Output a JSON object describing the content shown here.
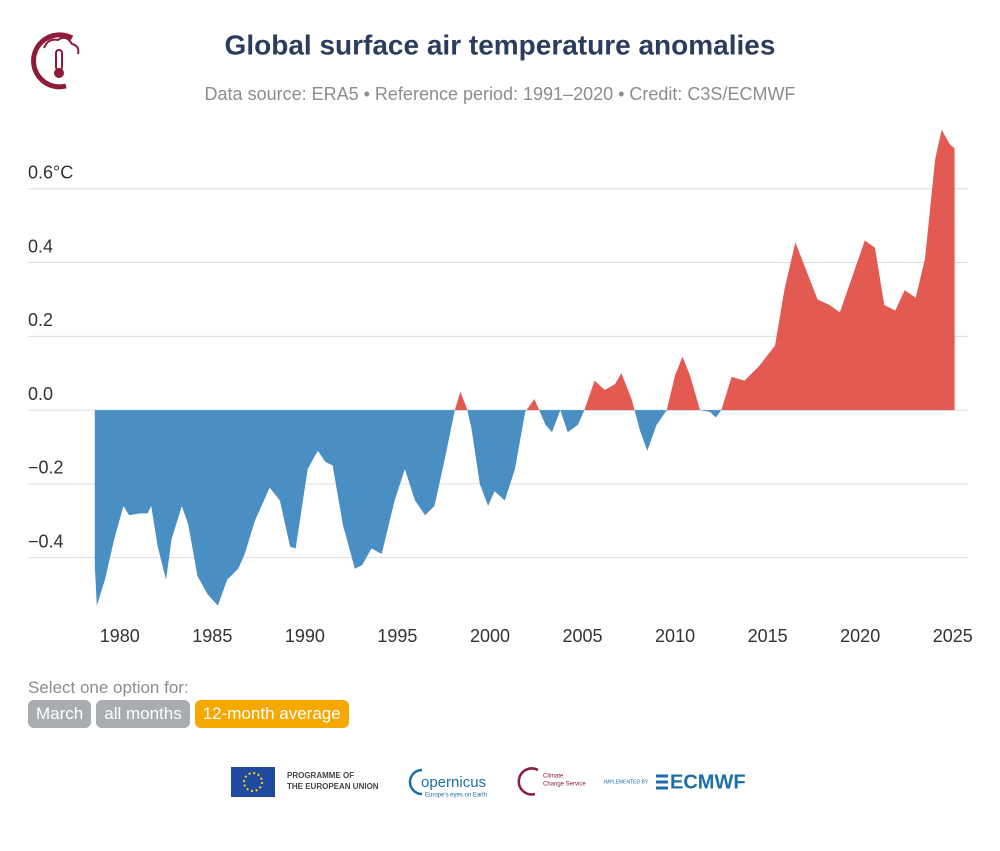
{
  "chart_data": {
    "type": "area",
    "title": "Global surface air temperature anomalies",
    "subtitle": "Data source: ERA5 • Reference period: 1991–2020 • Credit: C3S/ECMWF",
    "x": [
      1978.65,
      1978.76,
      1979.2,
      1979.7,
      1980.2,
      1980.5,
      1981.1,
      1981.5,
      1981.7,
      1982.05,
      1982.5,
      1982.8,
      1983.35,
      1983.7,
      1984.2,
      1984.75,
      1985.3,
      1985.8,
      1986.4,
      1986.75,
      1987.3,
      1988.1,
      1988.65,
      1989.2,
      1989.5,
      1989.7,
      1990.15,
      1990.7,
      1991.1,
      1991.5,
      1992.05,
      1992.7,
      1993.1,
      1993.6,
      1994.15,
      1994.85,
      1995.4,
      1995.95,
      1996.5,
      1997.0,
      1997.55,
      1998.1,
      1998.4,
      1998.75,
      1999.0,
      1999.45,
      1999.9,
      2000.25,
      2000.8,
      2001.35,
      2001.9,
      2002.4,
      2003.0,
      2003.35,
      2003.8,
      2004.2,
      2004.75,
      2005.1,
      2005.65,
      2006.2,
      2006.75,
      2007.1,
      2007.65,
      2008.1,
      2008.5,
      2009.0,
      2009.55,
      2010.0,
      2010.4,
      2010.8,
      2011.35,
      2011.9,
      2012.2,
      2012.5,
      2013.05,
      2013.75,
      2014.55,
      2015.4,
      2015.9,
      2016.5,
      2017.0,
      2017.7,
      2018.35,
      2018.9,
      2019.7,
      2020.25,
      2020.8,
      2021.3,
      2021.9,
      2022.4,
      2023.0,
      2023.5,
      2024.05,
      2024.4,
      2024.85,
      2025.1
    ],
    "values": [
      -0.42,
      -0.53,
      -0.46,
      -0.35,
      -0.26,
      -0.285,
      -0.28,
      -0.28,
      -0.26,
      -0.37,
      -0.46,
      -0.35,
      -0.26,
      -0.31,
      -0.45,
      -0.5,
      -0.53,
      -0.46,
      -0.43,
      -0.39,
      -0.3,
      -0.21,
      -0.245,
      -0.37,
      -0.375,
      -0.31,
      -0.16,
      -0.11,
      -0.14,
      -0.15,
      -0.31,
      -0.43,
      -0.42,
      -0.375,
      -0.39,
      -0.245,
      -0.16,
      -0.245,
      -0.285,
      -0.26,
      -0.135,
      0,
      0.05,
      0.005,
      -0.05,
      -0.2,
      -0.26,
      -0.22,
      -0.245,
      -0.16,
      -0.005,
      0.03,
      -0.04,
      -0.06,
      0,
      -0.06,
      -0.04,
      0,
      0.08,
      0.055,
      0.07,
      0.1,
      0.03,
      -0.055,
      -0.11,
      -0.04,
      0,
      0.095,
      0.145,
      0.095,
      0,
      -0.005,
      -0.02,
      0,
      0.09,
      0.08,
      0.12,
      0.175,
      0.325,
      0.455,
      0.39,
      0.3,
      0.285,
      0.265,
      0.38,
      0.46,
      0.44,
      0.285,
      0.27,
      0.325,
      0.305,
      0.41,
      0.68,
      0.76,
      0.72,
      0.71
    ],
    "positive_color": "#e35a53",
    "negative_color": "#4a8fc3",
    "xlim": [
      1978.5,
      2025.5
    ],
    "xticks": [
      1980,
      1985,
      1990,
      1995,
      2000,
      2005,
      2010,
      2015,
      2020,
      2025
    ],
    "ylim": [
      -0.55,
      0.8
    ],
    "yticks": [
      {
        "value": -0.4,
        "label": "−0.4"
      },
      {
        "value": -0.2,
        "label": "−0.2"
      },
      {
        "value": 0,
        "label": "0.0"
      },
      0.2,
      0.4,
      {
        "value": 0.6,
        "label": "0.6°C"
      }
    ],
    "grid": true
  },
  "controls": {
    "prompt": "Select one option for:",
    "options": [
      "March",
      "all months",
      "12-month average"
    ],
    "selected": 2
  },
  "footer": {
    "eu": [
      "PROGRAMME OF",
      "THE EUROPEAN UNION"
    ],
    "copernicus": [
      "opernicus",
      "Europe's eyes on Earth"
    ],
    "c3s": [
      "Climate",
      "Change Service"
    ],
    "implemented": "IMPLEMENTED BY",
    "ecmwf": "ECMWF"
  }
}
